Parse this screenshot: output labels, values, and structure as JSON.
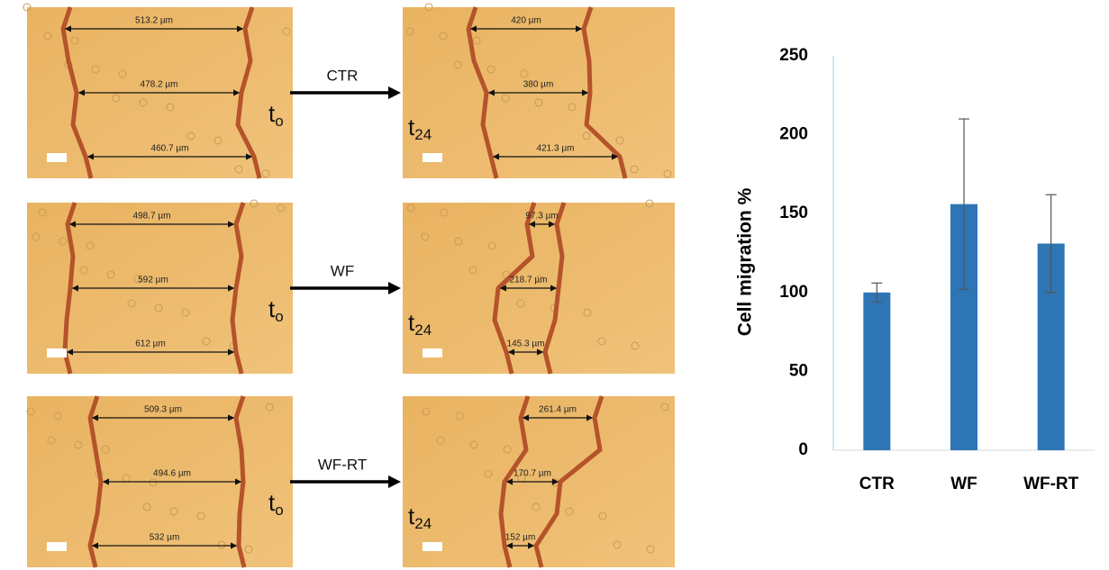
{
  "panels": [
    {
      "label": "CTR",
      "before": [
        "513.2 µm",
        "478.2 µm",
        "460.7 µm"
      ],
      "after": [
        "420 µm",
        "380 µm",
        "421.3 µm"
      ]
    },
    {
      "label": "WF",
      "before": [
        "498.7 µm",
        "592 µm",
        "612 µm"
      ],
      "after": [
        "97.3 µm",
        "218.7 µm",
        "145.3 µm"
      ]
    },
    {
      "label": "WF-RT",
      "before": [
        "509.3 µm",
        "494.6 µm",
        "532 µm"
      ],
      "after": [
        "261.4 µm",
        "170.7 µm",
        "152 µm"
      ]
    }
  ],
  "time_before": {
    "base": "t",
    "sub": "o"
  },
  "time_after": {
    "base": "t",
    "sub": "24"
  },
  "chart_data": {
    "type": "bar",
    "y_label": "Cell migration %",
    "categories": [
      "CTR",
      "WF",
      "WF-RT"
    ],
    "values": [
      100,
      156,
      131
    ],
    "errors": [
      6,
      54,
      31
    ],
    "color": "#2e75b6",
    "ylim": [
      0,
      250
    ],
    "yticks": [
      0,
      50,
      100,
      150,
      200,
      250
    ],
    "grid": false
  }
}
